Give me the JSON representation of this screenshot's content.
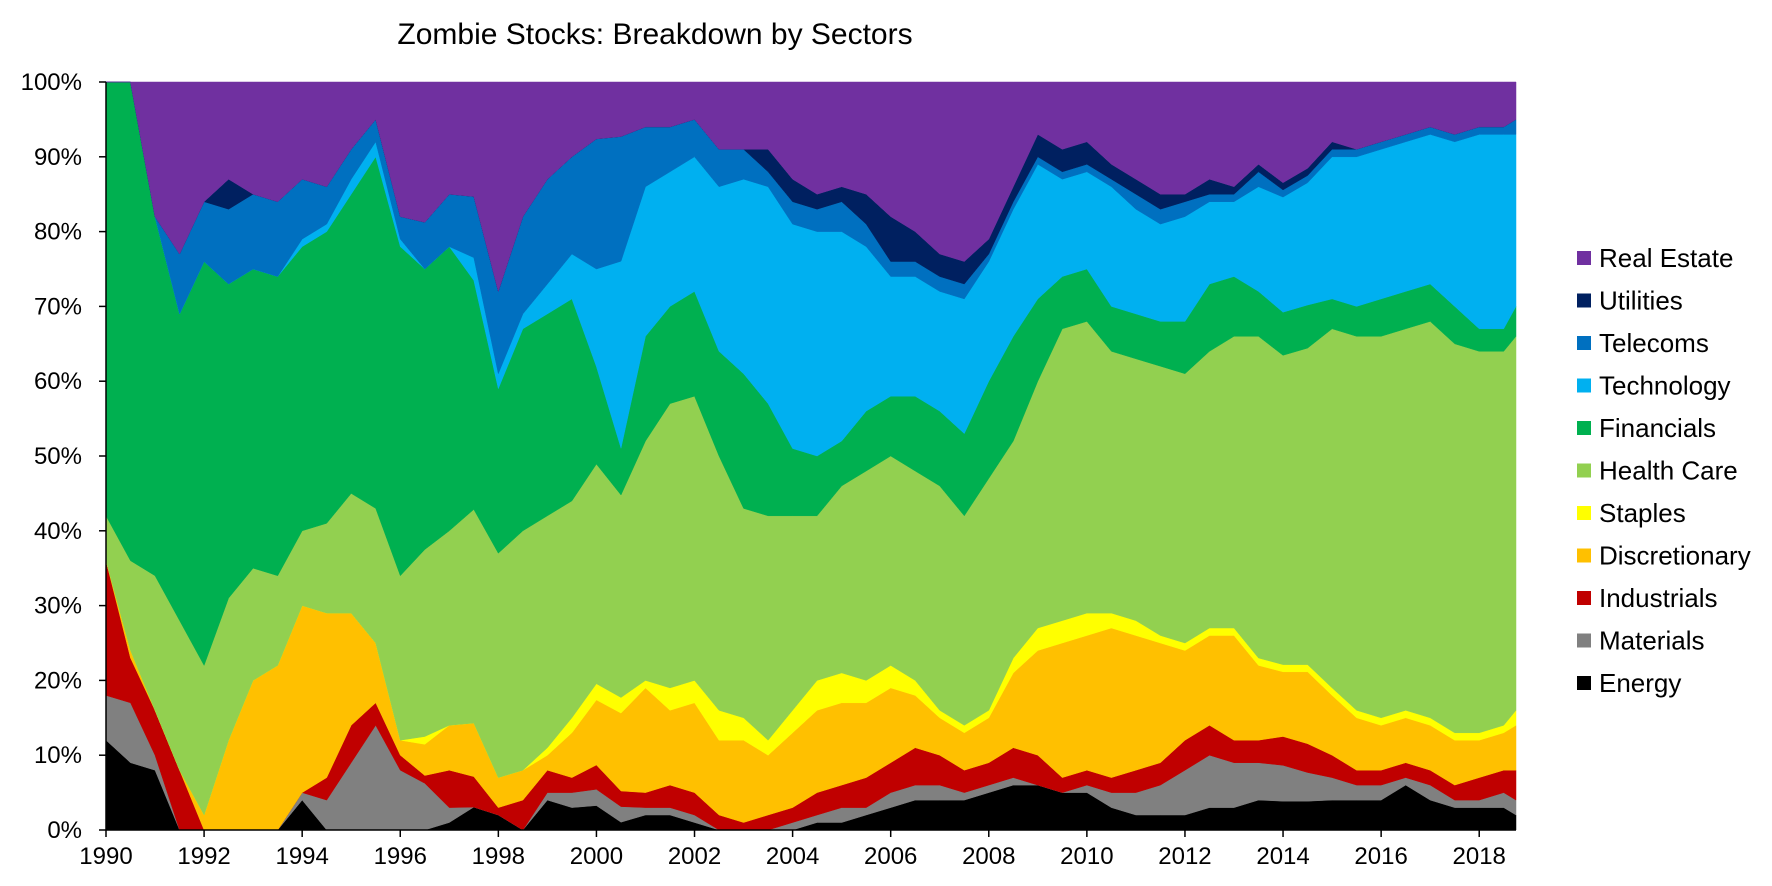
{
  "chart_data": {
    "type": "area",
    "stacked": true,
    "normalized": true,
    "title": "Zombie Stocks: Breakdown by Sectors",
    "xlabel": "",
    "ylabel": "",
    "xlim": [
      1990,
      2018.75
    ],
    "ylim": [
      0,
      1
    ],
    "x_ticks": [
      "1990",
      "1992",
      "1994",
      "1996",
      "1998",
      "2000",
      "2002",
      "2004",
      "2006",
      "2008",
      "2010",
      "2012",
      "2014",
      "2016",
      "2018"
    ],
    "y_ticks": [
      "0%",
      "10%",
      "20%",
      "30%",
      "40%",
      "50%",
      "60%",
      "70%",
      "80%",
      "90%",
      "100%"
    ],
    "grid": false,
    "legend_position": "right",
    "x": [
      1990.0,
      1990.5,
      1991.0,
      1991.5,
      1992.0,
      1992.5,
      1993.0,
      1993.5,
      1994.0,
      1994.5,
      1995.0,
      1995.5,
      1996.0,
      1996.5,
      1997.0,
      1997.5,
      1998.0,
      1998.5,
      1999.0,
      1999.5,
      2000.0,
      2000.5,
      2001.0,
      2001.5,
      2002.0,
      2002.5,
      2003.0,
      2003.5,
      2004.0,
      2004.5,
      2005.0,
      2005.5,
      2006.0,
      2006.5,
      2007.0,
      2007.5,
      2008.0,
      2008.5,
      2009.0,
      2009.5,
      2010.0,
      2010.5,
      2011.0,
      2011.5,
      2012.0,
      2012.5,
      2013.0,
      2013.5,
      2014.0,
      2014.5,
      2015.0,
      2015.5,
      2016.0,
      2016.5,
      2017.0,
      2017.5,
      2018.0,
      2018.5,
      2018.75
    ],
    "series": [
      {
        "name": "Energy",
        "color": "#000000",
        "values": [
          0.12,
          0.09,
          0.08,
          0,
          0,
          0,
          0,
          0,
          0.04,
          0,
          0,
          0,
          0,
          0,
          0.01,
          0.03,
          0.02,
          0,
          0.04,
          0.03,
          0.03,
          0.01,
          0.02,
          0.02,
          0.01,
          0,
          0,
          0,
          0,
          0.01,
          0.01,
          0.02,
          0.03,
          0.04,
          0.04,
          0.04,
          0.05,
          0.06,
          0.06,
          0.05,
          0.05,
          0.03,
          0.02,
          0.02,
          0.02,
          0.03,
          0.03,
          0.04,
          0.04,
          0.04,
          0.04,
          0.04,
          0.04,
          0.06,
          0.04,
          0.03,
          0.03,
          0.03,
          0.02
        ]
      },
      {
        "name": "Materials",
        "color": "#808080",
        "values": [
          0.06,
          0.08,
          0.02,
          0,
          0,
          0,
          0,
          0,
          0.01,
          0.04,
          0.09,
          0.14,
          0.08,
          0.06,
          0.02,
          0,
          0,
          0,
          0.01,
          0.02,
          0.02,
          0.02,
          0.01,
          0.01,
          0.01,
          0,
          0,
          0,
          0.01,
          0.01,
          0.02,
          0.01,
          0.02,
          0.02,
          0.02,
          0.01,
          0.01,
          0.01,
          0,
          0,
          0.01,
          0.02,
          0.03,
          0.04,
          0.06,
          0.07,
          0.06,
          0.05,
          0.05,
          0.04,
          0.03,
          0.02,
          0.02,
          0.01,
          0.02,
          0.01,
          0.01,
          0.02,
          0.02
        ]
      },
      {
        "name": "Industrials",
        "color": "#c00000",
        "values": [
          0.18,
          0.06,
          0.06,
          0.08,
          0,
          0,
          0,
          0,
          0,
          0.03,
          0.05,
          0.03,
          0.02,
          0.01,
          0.05,
          0.04,
          0.01,
          0.04,
          0.03,
          0.02,
          0.03,
          0.02,
          0.02,
          0.03,
          0.03,
          0.02,
          0.01,
          0.02,
          0.02,
          0.03,
          0.03,
          0.04,
          0.04,
          0.05,
          0.04,
          0.03,
          0.03,
          0.04,
          0.04,
          0.02,
          0.02,
          0.02,
          0.03,
          0.03,
          0.04,
          0.04,
          0.03,
          0.03,
          0.04,
          0.04,
          0.03,
          0.02,
          0.02,
          0.02,
          0.02,
          0.02,
          0.03,
          0.03,
          0.04
        ]
      },
      {
        "name": "Discretionary",
        "color": "#ffc000",
        "values": [
          0,
          0.01,
          0,
          0,
          0.02,
          0.12,
          0.2,
          0.22,
          0.25,
          0.22,
          0.15,
          0.08,
          0.02,
          0.04,
          0.06,
          0.07,
          0.04,
          0.04,
          0.02,
          0.06,
          0.08,
          0.1,
          0.14,
          0.1,
          0.12,
          0.1,
          0.11,
          0.08,
          0.1,
          0.11,
          0.11,
          0.1,
          0.1,
          0.07,
          0.05,
          0.05,
          0.06,
          0.1,
          0.14,
          0.18,
          0.18,
          0.2,
          0.18,
          0.16,
          0.12,
          0.12,
          0.14,
          0.1,
          0.09,
          0.1,
          0.08,
          0.07,
          0.06,
          0.06,
          0.06,
          0.06,
          0.05,
          0.05,
          0.06
        ]
      },
      {
        "name": "Staples",
        "color": "#ffff00",
        "values": [
          0,
          0,
          0,
          0,
          0,
          0,
          0,
          0,
          0,
          0,
          0,
          0,
          0,
          0.01,
          0,
          0,
          0,
          0,
          0.01,
          0.02,
          0.02,
          0.02,
          0.01,
          0.03,
          0.03,
          0.04,
          0.03,
          0.02,
          0.03,
          0.04,
          0.04,
          0.03,
          0.03,
          0.02,
          0.01,
          0.01,
          0.01,
          0.02,
          0.03,
          0.03,
          0.03,
          0.02,
          0.02,
          0.01,
          0.01,
          0.01,
          0.01,
          0.01,
          0.01,
          0.01,
          0.01,
          0.01,
          0.01,
          0.01,
          0.01,
          0.01,
          0.01,
          0.01,
          0.02
        ]
      },
      {
        "name": "Health Care",
        "color": "#92d050",
        "values": [
          0.06,
          0.12,
          0.18,
          0.2,
          0.2,
          0.19,
          0.15,
          0.12,
          0.1,
          0.12,
          0.16,
          0.18,
          0.22,
          0.24,
          0.26,
          0.28,
          0.3,
          0.32,
          0.31,
          0.29,
          0.27,
          0.26,
          0.32,
          0.38,
          0.38,
          0.34,
          0.28,
          0.3,
          0.26,
          0.22,
          0.25,
          0.28,
          0.28,
          0.28,
          0.3,
          0.28,
          0.31,
          0.29,
          0.33,
          0.39,
          0.39,
          0.35,
          0.35,
          0.36,
          0.36,
          0.37,
          0.39,
          0.43,
          0.43,
          0.44,
          0.48,
          0.5,
          0.51,
          0.51,
          0.53,
          0.52,
          0.51,
          0.5,
          0.5
        ]
      },
      {
        "name": "Financials",
        "color": "#00b050",
        "values": [
          0.58,
          0.64,
          0.48,
          0.41,
          0.54,
          0.42,
          0.4,
          0.4,
          0.38,
          0.39,
          0.4,
          0.47,
          0.44,
          0.36,
          0.38,
          0.3,
          0.22,
          0.27,
          0.27,
          0.27,
          0.12,
          0.06,
          0.14,
          0.13,
          0.14,
          0.14,
          0.18,
          0.15,
          0.09,
          0.08,
          0.06,
          0.08,
          0.08,
          0.1,
          0.1,
          0.11,
          0.13,
          0.14,
          0.11,
          0.07,
          0.07,
          0.06,
          0.06,
          0.06,
          0.07,
          0.09,
          0.08,
          0.06,
          0.06,
          0.06,
          0.04,
          0.04,
          0.05,
          0.05,
          0.05,
          0.05,
          0.03,
          0.03,
          0.04
        ]
      },
      {
        "name": "Technology",
        "color": "#00b0f0",
        "values": [
          0,
          0,
          0,
          0,
          0,
          0,
          0,
          0,
          0.01,
          0.01,
          0.02,
          0.02,
          0.01,
          0,
          0,
          0.03,
          0.02,
          0.02,
          0.04,
          0.06,
          0.12,
          0.24,
          0.2,
          0.18,
          0.18,
          0.22,
          0.26,
          0.29,
          0.3,
          0.3,
          0.28,
          0.22,
          0.16,
          0.16,
          0.16,
          0.18,
          0.16,
          0.17,
          0.18,
          0.13,
          0.13,
          0.16,
          0.14,
          0.13,
          0.14,
          0.11,
          0.1,
          0.14,
          0.16,
          0.17,
          0.19,
          0.2,
          0.2,
          0.2,
          0.2,
          0.22,
          0.26,
          0.26,
          0.23
        ]
      },
      {
        "name": "Telecoms",
        "color": "#0070c0",
        "values": [
          0,
          0,
          0,
          0.08,
          0.08,
          0.1,
          0.1,
          0.1,
          0.08,
          0.05,
          0.04,
          0.03,
          0.03,
          0.06,
          0.07,
          0.08,
          0.11,
          0.13,
          0.14,
          0.13,
          0.16,
          0.16,
          0.08,
          0.06,
          0.05,
          0.05,
          0.04,
          0.02,
          0.03,
          0.03,
          0.04,
          0.03,
          0.02,
          0.02,
          0.02,
          0.02,
          0.01,
          0.01,
          0.01,
          0.01,
          0.01,
          0.01,
          0.02,
          0.02,
          0.02,
          0.01,
          0.01,
          0.02,
          0.01,
          0.01,
          0.01,
          0.01,
          0.01,
          0.01,
          0.01,
          0.01,
          0.01,
          0.01,
          0.02
        ]
      },
      {
        "name": "Utilities",
        "color": "#002060",
        "values": [
          0,
          0,
          0,
          0,
          0,
          0.04,
          0,
          0,
          0,
          0,
          0,
          0,
          0,
          0,
          0,
          0,
          0,
          0,
          0,
          0,
          0,
          0,
          0,
          0,
          0,
          0,
          0,
          0.03,
          0.03,
          0.02,
          0.02,
          0.04,
          0.06,
          0.04,
          0.03,
          0.03,
          0.02,
          0.02,
          0.03,
          0.03,
          0.03,
          0.02,
          0.02,
          0.02,
          0.01,
          0.02,
          0.01,
          0.01,
          0.01,
          0.01,
          0.01,
          0,
          0,
          0,
          0,
          0,
          0,
          0,
          0
        ]
      },
      {
        "name": "Real Estate",
        "color": "#7030a0",
        "values": [
          0,
          0,
          0.18,
          0.23,
          0.16,
          0.13,
          0.15,
          0.16,
          0.13,
          0.14,
          0.09,
          0.05,
          0.18,
          0.18,
          0.15,
          0.15,
          0.28,
          0.18,
          0.13,
          0.1,
          0.07,
          0.07,
          0.06,
          0.06,
          0.05,
          0.09,
          0.09,
          0.09,
          0.13,
          0.15,
          0.14,
          0.15,
          0.18,
          0.2,
          0.23,
          0.24,
          0.21,
          0.14,
          0.07,
          0.09,
          0.08,
          0.11,
          0.13,
          0.15,
          0.15,
          0.13,
          0.14,
          0.11,
          0.14,
          0.12,
          0.08,
          0.09,
          0.08,
          0.07,
          0.06,
          0.07,
          0.06,
          0.06,
          0.05
        ]
      }
    ]
  }
}
